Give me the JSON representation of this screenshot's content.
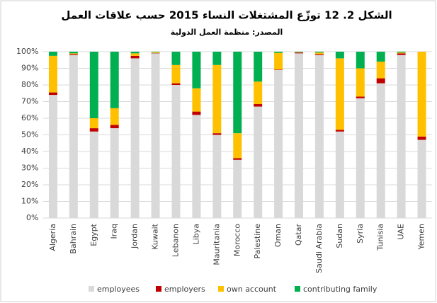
{
  "chart_data": {
    "type": "stacked_bar",
    "title": "الشكل 2. 12  توزّع المشتغلات النساء 2015 حسب علاقات العمل",
    "subtitle": "المصدر: منظمة العمل الدولية",
    "categories": [
      "Algeria",
      "Bahrain",
      "Egypt",
      "Iraq",
      "Jordan",
      "Kuwait",
      "Lebanon",
      "Libya",
      "Mauritania",
      "Morocco",
      "Palestine",
      "Oman",
      "Qatar",
      "Saudi Arabia",
      "Sudan",
      "Syria",
      "Tunisia",
      "UAE",
      "Yemen"
    ],
    "series": [
      {
        "name": "employees",
        "color": "#d9d9d9",
        "values": [
          74,
          98,
          52,
          54,
          96,
          99,
          80,
          62,
          50,
          35,
          67,
          89,
          99,
          98,
          52,
          72,
          81,
          98,
          47
        ]
      },
      {
        "name": "employers",
        "color": "#c00000",
        "values": [
          1.5,
          0.5,
          2,
          2,
          1.5,
          0.2,
          1,
          2,
          1,
          1,
          1.5,
          0.3,
          0.5,
          0.5,
          1,
          1,
          3,
          1,
          2
        ]
      },
      {
        "name": "own account",
        "color": "#ffc000",
        "values": [
          22,
          0.5,
          6,
          10,
          1.5,
          0.5,
          11,
          14,
          41,
          15,
          13.5,
          10,
          0.2,
          1,
          43,
          17,
          10,
          0.5,
          51
        ]
      },
      {
        "name": "contributing family",
        "color": "#00b050",
        "values": [
          2.5,
          1,
          40,
          34,
          1,
          0.3,
          8,
          22,
          8,
          49,
          18,
          0.7,
          0.3,
          0.5,
          4,
          10,
          6,
          0.5,
          0
        ]
      }
    ],
    "ylim": [
      0,
      100
    ],
    "yticks": [
      {
        "value": 0,
        "label": "0%"
      },
      {
        "value": 10,
        "label": "10%"
      },
      {
        "value": 20,
        "label": "20%"
      },
      {
        "value": 30,
        "label": "30%"
      },
      {
        "value": 40,
        "label": "40%"
      },
      {
        "value": 50,
        "label": "50%"
      },
      {
        "value": 60,
        "label": "60%"
      },
      {
        "value": 70,
        "label": "70%"
      },
      {
        "value": 80,
        "label": "80%"
      },
      {
        "value": 90,
        "label": "90%"
      },
      {
        "value": 100,
        "label": "100%"
      }
    ],
    "grid": true,
    "legend": "bottom"
  }
}
